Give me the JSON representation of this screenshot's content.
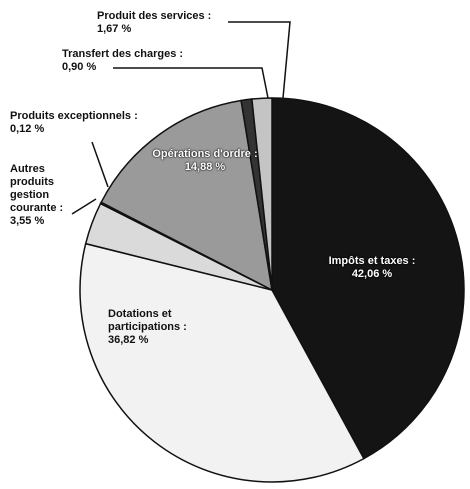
{
  "chart_data": {
    "type": "pie",
    "categories": [
      "Impôts et taxes :",
      "Dotations et participations :",
      "Autres produits gestion courante :",
      "Produits exceptionnels :",
      "Opérations d'ordre :",
      "Transfert des charges :",
      "Produit des services :"
    ],
    "values": [
      42.06,
      36.82,
      3.55,
      0.12,
      14.88,
      0.9,
      1.67
    ],
    "value_labels": [
      "42,06 %",
      "36,82 %",
      "3,55 %",
      "0,12 %",
      "14,88 %",
      "0,90 %",
      "1,67 %"
    ],
    "colors": [
      "#141414",
      "#f2f2f2",
      "#dadada",
      "#555555",
      "#9a9a9a",
      "#333333",
      "#c4c4c4"
    ]
  }
}
